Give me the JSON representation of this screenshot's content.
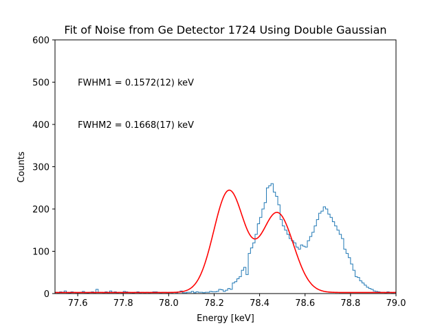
{
  "chart_data": {
    "type": "line",
    "title": "Fit of Noise from Ge Detector 1724 Using Double Gaussian",
    "xlabel": "Energy [keV]",
    "ylabel": "Counts",
    "xlim": [
      77.5,
      79.0
    ],
    "ylim": [
      0,
      600
    ],
    "x_ticks": [
      "77.6",
      "77.8",
      "78.0",
      "78.2",
      "78.4",
      "78.6",
      "78.8",
      "79.0"
    ],
    "y_ticks": [
      "0",
      "100",
      "200",
      "300",
      "400",
      "500",
      "600"
    ],
    "grid": false,
    "annotations": [
      {
        "text": "FWHM1 = 0.1572(12) keV",
        "x": 77.6,
        "y": 500
      },
      {
        "text": "FWHM2 = 0.1668(17) keV",
        "x": 77.6,
        "y": 400
      }
    ],
    "histogram": {
      "color": "#1f77b4",
      "bin_edges_start": 77.5,
      "bin_width": 0.01,
      "counts": [
        3,
        2,
        4,
        3,
        6,
        2,
        1,
        4,
        3,
        2,
        2,
        3,
        5,
        2,
        1,
        3,
        4,
        2,
        10,
        3,
        3,
        2,
        4,
        2,
        6,
        3,
        4,
        2,
        3,
        2,
        5,
        4,
        3,
        2,
        1,
        3,
        4,
        2,
        3,
        2,
        3,
        2,
        3,
        4,
        4,
        3,
        2,
        3,
        3,
        2,
        3,
        2,
        3,
        2,
        4,
        6,
        2,
        2,
        3,
        3,
        5,
        2,
        4,
        3,
        3,
        2,
        3,
        3,
        5,
        4,
        4,
        5,
        10,
        9,
        5,
        8,
        12,
        10,
        25,
        28,
        35,
        40,
        55,
        62,
        45,
        95,
        108,
        120,
        140,
        165,
        180,
        200,
        215,
        250,
        255,
        260,
        240,
        230,
        210,
        175,
        160,
        150,
        140,
        130,
        125,
        120,
        110,
        105,
        115,
        112,
        110,
        125,
        135,
        145,
        160,
        175,
        190,
        195,
        205,
        200,
        188,
        180,
        170,
        160,
        150,
        140,
        130,
        105,
        95,
        85,
        70,
        55,
        40,
        38,
        30,
        25,
        20,
        15,
        12,
        10,
        6,
        5,
        4,
        3,
        3,
        2,
        4,
        3,
        2,
        3,
        3,
        2,
        3,
        2,
        3,
        4,
        3,
        2,
        3,
        2
      ]
    },
    "fit_curve": {
      "color": "#ff0000",
      "g1": {
        "amplitude": 240,
        "mean": 78.265,
        "fwhm": 0.1572
      },
      "g2": {
        "amplitude": 188,
        "mean": 78.478,
        "fwhm": 0.1668
      },
      "baseline": 2.5
    }
  }
}
